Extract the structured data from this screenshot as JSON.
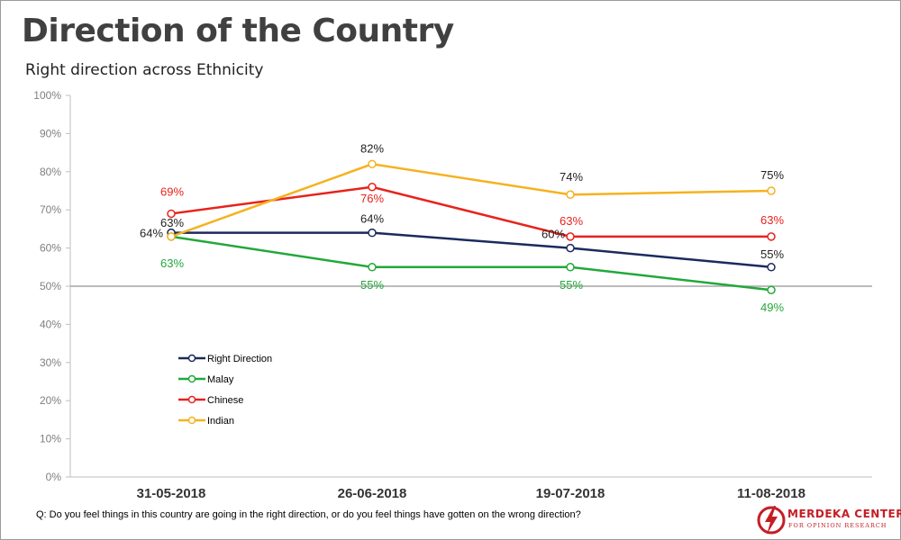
{
  "header": {
    "title": "Direction of the Country",
    "subtitle": "Right direction across Ethnicity"
  },
  "footnote": "Q: Do you feel things in this country are going in the right direction, or do you feel things have gotten on the wrong direction?",
  "logo": {
    "name": "MERDEKA CENTER",
    "tagline": "FOR OPINION RESEARCH",
    "color": "#c41e24"
  },
  "chart_data": {
    "type": "line",
    "categories": [
      "31-05-2018",
      "26-06-2018",
      "19-07-2018",
      "11-08-2018"
    ],
    "ylim": [
      0,
      100
    ],
    "yticks": [
      "0%",
      "10%",
      "20%",
      "30%",
      "40%",
      "50%",
      "60%",
      "70%",
      "80%",
      "90%",
      "100%"
    ],
    "reference_line": 50,
    "grid": false,
    "legend_position": "bottom-left",
    "series": [
      {
        "name": "Right Direction",
        "color": "#1b2a5e",
        "values": [
          64,
          64,
          60,
          55
        ],
        "labels": [
          "64%",
          "64%",
          "60%",
          "55%"
        ]
      },
      {
        "name": "Malay",
        "color": "#22a83a",
        "values": [
          63,
          55,
          55,
          49
        ],
        "labels": [
          "63%",
          "55%",
          "55%",
          "49%"
        ]
      },
      {
        "name": "Chinese",
        "color": "#e8221c",
        "values": [
          69,
          76,
          63,
          63
        ],
        "labels": [
          "69%",
          "76%",
          "63%",
          "63%"
        ]
      },
      {
        "name": "Indian",
        "color": "#f5b21f",
        "values": [
          63,
          82,
          74,
          75
        ],
        "labels": [
          "63%",
          "82%",
          "74%",
          "75%"
        ]
      }
    ]
  }
}
